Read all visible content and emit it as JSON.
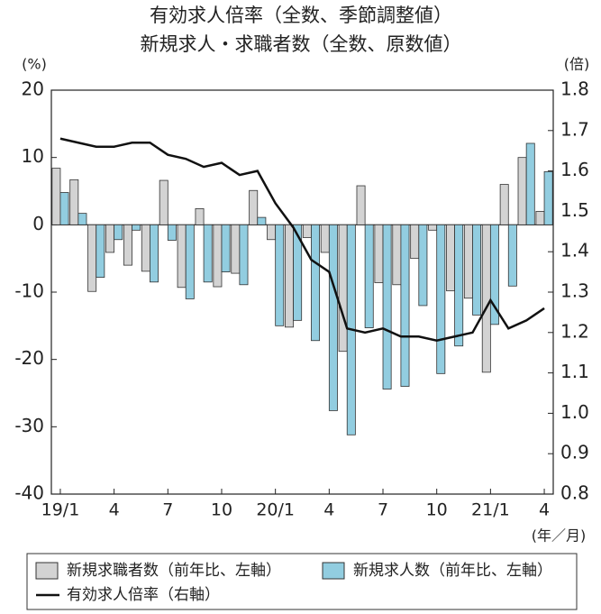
{
  "chart_data": {
    "type": "bar-line",
    "title": "有効求人倍率（全数、季節調整値）",
    "subtitle": "新規求人・求職者数（全数、原数値）",
    "y_label": "(%)",
    "y2_label": "(倍)",
    "x_label": "(年／月)",
    "categories": [
      "19/1",
      null,
      null,
      "4",
      null,
      null,
      "7",
      null,
      null,
      "10",
      null,
      null,
      "20/1",
      null,
      null,
      "4",
      null,
      null,
      "7",
      null,
      null,
      "10",
      null,
      null,
      "21/1",
      null,
      null,
      "4"
    ],
    "series": [
      {
        "name": "新規求職者数（前年比、左軸）",
        "color": "#d3d3d3",
        "kind": "bar",
        "values": [
          8.4,
          6.7,
          -9.9,
          -4.1,
          -6.0,
          -6.9,
          6.6,
          -9.3,
          2.4,
          -9.2,
          -7.2,
          5.1,
          -2.2,
          -15.2,
          -1.9,
          -4.1,
          -18.8,
          5.8,
          -8.6,
          -8.9,
          -5.0,
          -0.8,
          -9.8,
          -10.9,
          -21.9,
          6.0,
          10.0,
          2.0
        ]
      },
      {
        "name": "新規求人数（前年比、左軸）",
        "color": "#92cde0",
        "kind": "bar",
        "values": [
          4.8,
          1.7,
          -7.8,
          -2.2,
          -0.8,
          -8.5,
          -2.3,
          -11.0,
          -8.5,
          -7.0,
          -8.9,
          1.1,
          -15.0,
          -14.2,
          -17.2,
          -27.6,
          -31.2,
          -15.3,
          -24.4,
          -24.0,
          -12.0,
          -22.1,
          -18.0,
          -13.4,
          -14.8,
          -9.1,
          12.1,
          7.9
        ]
      },
      {
        "name": "有効求人倍率（右軸）",
        "color": "#111111",
        "kind": "line",
        "axis": "y2",
        "values": [
          1.68,
          1.67,
          1.66,
          1.66,
          1.67,
          1.67,
          1.64,
          1.63,
          1.61,
          1.62,
          1.59,
          1.6,
          1.52,
          1.46,
          1.38,
          1.35,
          1.21,
          1.2,
          1.21,
          1.19,
          1.19,
          1.18,
          1.19,
          1.2,
          1.28,
          1.21,
          1.23,
          1.26
        ]
      }
    ],
    "ylim": [
      -40,
      20
    ],
    "yticks": [
      -40,
      -30,
      -20,
      -10,
      0,
      10,
      20
    ],
    "y2lim": [
      0.8,
      1.8
    ],
    "y2ticks": [
      0.8,
      0.9,
      {
        "value": 1,
        "label": "1.0"
      },
      1.1,
      1.2,
      1.3,
      1.4,
      1.5,
      1.6,
      1.7,
      1.8
    ]
  }
}
